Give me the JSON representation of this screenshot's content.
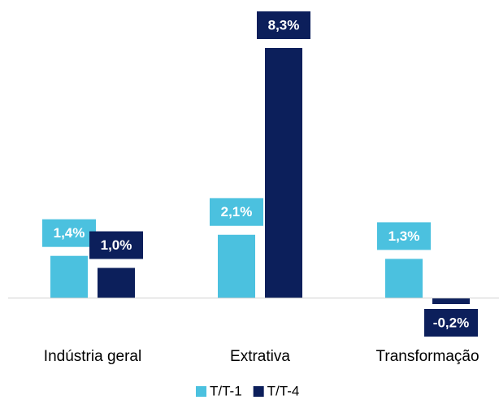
{
  "chart_data": {
    "type": "bar",
    "categories": [
      "Indústria geral",
      "Extrativa",
      "Transformação"
    ],
    "series": [
      {
        "name": "T/T-1",
        "color": "#4bc1df",
        "values": [
          1.4,
          2.1,
          1.3
        ],
        "value_labels": [
          "1,4%",
          "2,1%",
          "1,3%"
        ]
      },
      {
        "name": "T/T-4",
        "color": "#0c1f5b",
        "values": [
          1.0,
          8.3,
          -0.2
        ],
        "value_labels": [
          "1,0%",
          "8,3%",
          "-0,2%"
        ]
      }
    ],
    "legend": "bottom"
  }
}
